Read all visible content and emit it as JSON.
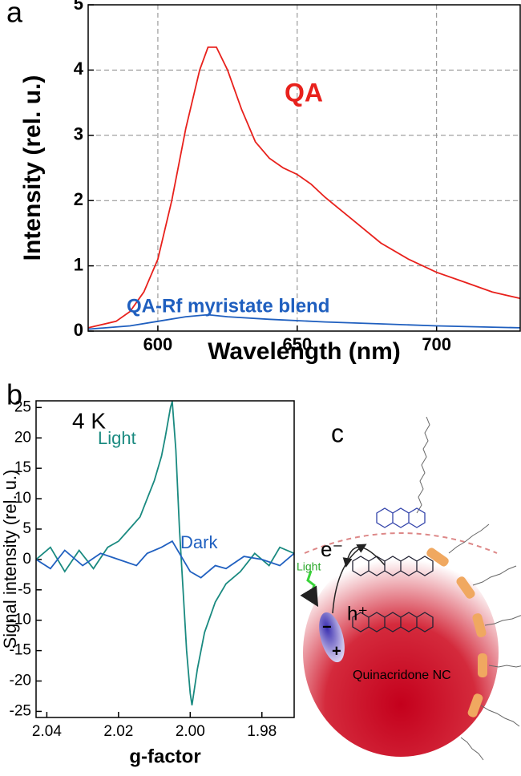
{
  "chart_data": [
    {
      "type": "line",
      "panel": "a",
      "x_label": "Wavelength (nm)",
      "y_label": "Intensity (rel. u.)",
      "xlim": [
        575,
        730
      ],
      "xticks": [
        600,
        650,
        700
      ],
      "ylim": [
        0,
        5
      ],
      "yticks": [
        0,
        1,
        2,
        3,
        4,
        5
      ],
      "grid": true,
      "series": [
        {
          "name": "QA",
          "color": "#e8211c",
          "x": [
            575,
            585,
            590,
            595,
            600,
            605,
            610,
            615,
            618,
            621,
            625,
            630,
            635,
            640,
            645,
            650,
            655,
            660,
            670,
            680,
            690,
            700,
            710,
            720,
            730
          ],
          "values": [
            0.05,
            0.15,
            0.3,
            0.6,
            1.1,
            2.0,
            3.1,
            4.0,
            4.35,
            4.35,
            4.0,
            3.4,
            2.9,
            2.65,
            2.5,
            2.4,
            2.25,
            2.05,
            1.7,
            1.35,
            1.1,
            0.9,
            0.75,
            0.6,
            0.5
          ]
        },
        {
          "name": "QA-Rf myristate blend",
          "color": "#1f5fbf",
          "x": [
            575,
            590,
            600,
            610,
            618,
            625,
            640,
            660,
            680,
            700,
            720,
            730
          ],
          "values": [
            0.03,
            0.08,
            0.15,
            0.22,
            0.25,
            0.22,
            0.18,
            0.14,
            0.11,
            0.08,
            0.06,
            0.05
          ]
        }
      ]
    },
    {
      "type": "line",
      "panel": "b",
      "annotation": "4 K",
      "x_label": "g-factor",
      "y_label": "Signal intensity  (rel. u.)",
      "xlim": [
        2.043,
        1.971
      ],
      "xticks": [
        2.04,
        2.02,
        {
          "value": 2,
          "label": "2.00"
        },
        1.98
      ],
      "ylim": [
        -26,
        26.1
      ],
      "yticks": [
        -25,
        -20,
        -15,
        -10,
        -5,
        0,
        5,
        10,
        15,
        20,
        25
      ],
      "grid": false,
      "series": [
        {
          "name": "Light",
          "color": "#1a8a80",
          "x": [
            2.043,
            2.039,
            2.035,
            2.031,
            2.027,
            2.023,
            2.02,
            2.017,
            2.014,
            2.012,
            2.01,
            2.008,
            2.007,
            2.0055,
            2.005,
            2.004,
            2.003,
            2.002,
            2.001,
            2.0,
            1.9995,
            1.998,
            1.996,
            1.993,
            1.99,
            1.986,
            1.982,
            1.978,
            1.975,
            1.971
          ],
          "values": [
            0,
            2,
            -2,
            1.5,
            -1.5,
            2,
            3,
            5,
            7,
            10,
            13,
            17,
            20,
            25,
            26,
            18,
            5,
            -5,
            -15,
            -22,
            -24,
            -18,
            -12,
            -7,
            -4,
            -2,
            1,
            -1,
            2,
            1
          ]
        },
        {
          "name": "Dark",
          "color": "#2060c0",
          "x": [
            2.043,
            2.039,
            2.035,
            2.03,
            2.025,
            2.02,
            2.015,
            2.012,
            2.008,
            2.005,
            2.003,
            2.0,
            1.997,
            1.993,
            1.99,
            1.985,
            1.98,
            1.975,
            1.971
          ],
          "values": [
            0,
            -1.5,
            1.5,
            -1,
            1,
            0,
            -1,
            1,
            2,
            3,
            1,
            -2,
            -3,
            -1,
            -1.5,
            0.5,
            0,
            -1,
            1
          ]
        }
      ]
    }
  ],
  "diagram": {
    "panel": "c",
    "electron": "e⁻",
    "hole": "h⁺",
    "light": "Light",
    "minus": "−",
    "plus": "+",
    "nc_label": "Quinacridone NC"
  }
}
